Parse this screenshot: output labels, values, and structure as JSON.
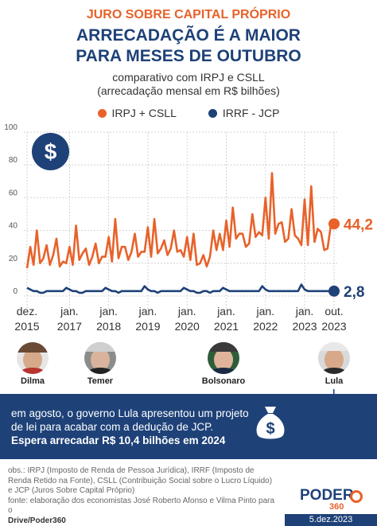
{
  "kicker": "JURO SOBRE CAPITAL PRÓPRIO",
  "headline_1": "ARRECADAÇÃO É A MAIOR",
  "headline_2": "PARA MESES DE OUTUBRO",
  "subtitle_1": "comparativo com IRPJ e CSLL",
  "subtitle_2": "(arrecadação mensal em R$ bilhões)",
  "badge_symbol": "$",
  "colors": {
    "irpj_csll": "#e8622a",
    "irrf_jcp": "#1e4178",
    "grid": "#c8c8c8"
  },
  "presidents": [
    {
      "name": "Dilma"
    },
    {
      "name": "Temer"
    },
    {
      "name": "Bolsonaro"
    },
    {
      "name": "Lula"
    }
  ],
  "info": {
    "text": "em agosto, o governo Lula apresentou um projeto de lei para acabar com a dedução de JCP.",
    "bold": "Espera arrecadar R$ 10,4 bilhões em 2024",
    "bag_symbol": "$"
  },
  "footnote": {
    "obs": "obs.: IRPJ (Imposto de Renda de Pessoa Jurídica), IRRF (Imposto de Renda Retido na Fonte), CSLL (Contribuição Social sobre o Lucro Líquido) e JCP (Juros Sobre Capital Próprio)",
    "source": "fonte: elaboração dos economistas José Roberto Afonso e Vilma Pinto para o",
    "credit": "Drive/Poder360"
  },
  "brand": {
    "name": "PODER",
    "number": "360"
  },
  "date": "5.dez.2023",
  "chart_data": {
    "type": "line",
    "ylim": [
      0,
      100
    ],
    "yticks": [
      0,
      20,
      40,
      60,
      80,
      100
    ],
    "x_tick_labels": [
      {
        "top": "dez.",
        "bottom": "2015",
        "index": 0
      },
      {
        "top": "jan.",
        "bottom": "2017",
        "index": 13
      },
      {
        "top": "jan.",
        "bottom": "2018",
        "index": 25
      },
      {
        "top": "jan.",
        "bottom": "2019",
        "index": 37
      },
      {
        "top": "jan.",
        "bottom": "2020",
        "index": 49
      },
      {
        "top": "jan.",
        "bottom": "2021",
        "index": 61
      },
      {
        "top": "jan.",
        "bottom": "2022",
        "index": 73
      },
      {
        "top": "jan.",
        "bottom": "2023",
        "index": 85
      },
      {
        "top": "out.",
        "bottom": "2023",
        "index": 94
      }
    ],
    "series": [
      {
        "name": "IRPJ + CSLL",
        "end_label": "44,2",
        "values": [
          17,
          30,
          19,
          40,
          20,
          23,
          31,
          19,
          25,
          35,
          18,
          21,
          20,
          30,
          19,
          43,
          22,
          26,
          29,
          19,
          24,
          32,
          20,
          24,
          24,
          36,
          21,
          47,
          23,
          30,
          30,
          22,
          27,
          38,
          24,
          27,
          27,
          42,
          24,
          47,
          26,
          29,
          34,
          25,
          29,
          40,
          27,
          28,
          24,
          36,
          22,
          38,
          19,
          20,
          25,
          18,
          24,
          40,
          28,
          38,
          28,
          46,
          30,
          54,
          35,
          38,
          38,
          30,
          32,
          50,
          36,
          39,
          37,
          60,
          35,
          75,
          38,
          44,
          45,
          33,
          35,
          53,
          37,
          35,
          31,
          59,
          31,
          67,
          33,
          41,
          39,
          28,
          29,
          43,
          44
        ]
      },
      {
        "name": "IRRF - JCP",
        "end_label": "2,8",
        "values": [
          5,
          4,
          3,
          3,
          2,
          2,
          3,
          3,
          3,
          3,
          3,
          3,
          5,
          4,
          3,
          3,
          2,
          2,
          3,
          3,
          3,
          3,
          3,
          3,
          5,
          4,
          3,
          3,
          2,
          3,
          3,
          3,
          3,
          3,
          3,
          3,
          6,
          4,
          3,
          3,
          2,
          3,
          3,
          3,
          3,
          3,
          3,
          3,
          5,
          4,
          3,
          3,
          2,
          2,
          3,
          3,
          2,
          3,
          3,
          3,
          5,
          4,
          3,
          3,
          3,
          3,
          3,
          3,
          3,
          3,
          3,
          3,
          6,
          4,
          3,
          3,
          3,
          3,
          3,
          3,
          3,
          3,
          3,
          3,
          7,
          4,
          3,
          3,
          3,
          3,
          3,
          3,
          3,
          3,
          3
        ]
      }
    ]
  }
}
